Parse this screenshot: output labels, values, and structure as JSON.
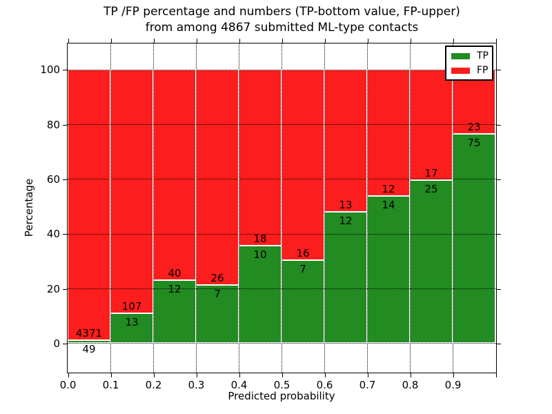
{
  "title": {
    "line1": "TP /FP percentage and numbers (TP-bottom value, FP-upper)",
    "line2": "from among 4867 submitted ML-type contacts"
  },
  "axes": {
    "xlabel": "Predicted probability",
    "ylabel": "Percentage",
    "x_tick_labels": [
      "0.0",
      "0.1",
      "0.2",
      "0.3",
      "0.4",
      "0.5",
      "0.6",
      "0.7",
      "0.8",
      "0.9"
    ],
    "y_tick_labels": [
      "0",
      "20",
      "40",
      "60",
      "80",
      "100"
    ],
    "y_ticks": [
      0,
      20,
      40,
      60,
      80,
      100
    ],
    "ylim": [
      -10.5,
      109.5
    ],
    "xlim": [
      0.0,
      1.0
    ],
    "grid": true
  },
  "legend": {
    "position": "upper-right",
    "items": [
      {
        "label": "TP",
        "color": "#228b22"
      },
      {
        "label": "FP",
        "color": "#fc1d1d"
      }
    ]
  },
  "colors": {
    "tp": "#228b22",
    "fp": "#fc1d1d",
    "grid": "#000000",
    "background": "#ffffff"
  },
  "chart_data": {
    "type": "bar",
    "stacked": true,
    "normalized": "each bin scaled to 100%",
    "bin_edges": [
      0.0,
      0.1,
      0.2,
      0.3,
      0.4,
      0.5,
      0.6,
      0.7,
      0.8,
      0.9,
      1.0
    ],
    "series": [
      {
        "name": "TP",
        "color": "#228b22",
        "counts": [
          49,
          13,
          12,
          7,
          10,
          7,
          12,
          14,
          25,
          75
        ]
      },
      {
        "name": "FP",
        "color": "#fc1d1d",
        "counts": [
          4371,
          107,
          40,
          26,
          18,
          16,
          13,
          12,
          17,
          23
        ]
      }
    ],
    "tp_percent": [
      1.11,
      10.83,
      23.08,
      21.21,
      35.71,
      30.43,
      48.0,
      53.85,
      59.52,
      76.53
    ],
    "total_contacts": 4867,
    "title": "TP /FP percentage and numbers (TP-bottom value, FP-upper)\nfrom among 4867 submitted ML-type contacts",
    "xlabel": "Predicted probability",
    "ylabel": "Percentage",
    "ylim": [
      -10.5,
      109.5
    ],
    "grid": true,
    "legend_position": "upper right"
  }
}
